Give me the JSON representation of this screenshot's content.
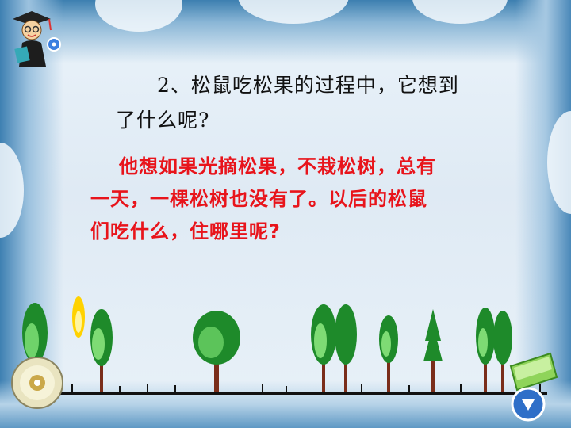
{
  "slide": {
    "question": {
      "line1": "2、松鼠吃松果的过程中，它想到",
      "line2": "了什么呢?"
    },
    "answer": {
      "line1": "他想如果光摘松果，不栽松树，总有",
      "line2": "一天，一棵松树也没有了。以后的松鼠",
      "line3": "们吃什么，住哪里呢?"
    }
  },
  "colors": {
    "question_text": "#111111",
    "answer_text": "#e8141b",
    "frame_blue": "#3d7fb0"
  },
  "icons": {
    "teacher": "teacher-clipart-icon",
    "disc": "cd-disc-icon",
    "book": "green-book-icon",
    "nav_down": "down-arrow-button-icon"
  }
}
